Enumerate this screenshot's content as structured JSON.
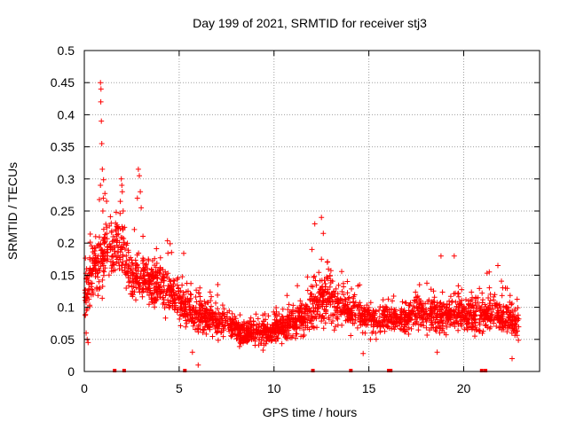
{
  "chart_data": {
    "type": "scatter",
    "title": "Day 199 of 2021, SRMTID for receiver stj3",
    "xlabel": "GPS time / hours",
    "ylabel": "SRMTID / TECUs",
    "xlim": [
      0,
      24
    ],
    "ylim": [
      0,
      0.5
    ],
    "x_ticks": [
      "0",
      "5",
      "10",
      "15",
      "20"
    ],
    "x_tick_values": [
      0,
      5,
      10,
      15,
      20
    ],
    "y_ticks": [
      "0",
      "0.05",
      "0.1",
      "0.15",
      "0.2",
      "0.25",
      "0.3",
      "0.35",
      "0.4",
      "0.45",
      "0.5"
    ],
    "y_tick_values": [
      0,
      0.05,
      0.1,
      0.15,
      0.2,
      0.25,
      0.3,
      0.35,
      0.4,
      0.45,
      0.5
    ],
    "grid": true,
    "marker": "plus",
    "color": "#ff0000",
    "profile_x": [
      0,
      0.5,
      1,
      1.5,
      2,
      2.5,
      3,
      3.5,
      4,
      4.5,
      5,
      5.5,
      6,
      6.5,
      7,
      7.5,
      8,
      8.5,
      9,
      9.5,
      10,
      10.5,
      11,
      11.5,
      12,
      12.5,
      13,
      13.5,
      14,
      14.5,
      15,
      15.5,
      16,
      16.5,
      17,
      17.5,
      18,
      18.5,
      19,
      19.5,
      20,
      20.5,
      21,
      21.5,
      22,
      22.5,
      22.9
    ],
    "profile_y": [
      0.11,
      0.16,
      0.18,
      0.2,
      0.19,
      0.14,
      0.15,
      0.14,
      0.14,
      0.12,
      0.11,
      0.1,
      0.09,
      0.085,
      0.08,
      0.075,
      0.065,
      0.06,
      0.06,
      0.06,
      0.065,
      0.07,
      0.075,
      0.085,
      0.1,
      0.11,
      0.11,
      0.1,
      0.095,
      0.09,
      0.085,
      0.08,
      0.08,
      0.08,
      0.085,
      0.09,
      0.09,
      0.085,
      0.085,
      0.09,
      0.09,
      0.085,
      0.085,
      0.09,
      0.085,
      0.08,
      0.07
    ],
    "spread": [
      0.03,
      0.05,
      0.06,
      0.05,
      0.05,
      0.04,
      0.04,
      0.04,
      0.04,
      0.04,
      0.035,
      0.035,
      0.035,
      0.03,
      0.03,
      0.025,
      0.02,
      0.02,
      0.02,
      0.02,
      0.02,
      0.025,
      0.025,
      0.03,
      0.04,
      0.04,
      0.04,
      0.035,
      0.03,
      0.03,
      0.03,
      0.025,
      0.025,
      0.025,
      0.03,
      0.03,
      0.03,
      0.03,
      0.03,
      0.03,
      0.03,
      0.03,
      0.03,
      0.03,
      0.03,
      0.025,
      0.02
    ],
    "highlight_points": [
      {
        "x": 0.85,
        "y": 0.45
      },
      {
        "x": 0.88,
        "y": 0.44
      },
      {
        "x": 0.87,
        "y": 0.42
      },
      {
        "x": 0.9,
        "y": 0.39
      },
      {
        "x": 0.92,
        "y": 0.355
      },
      {
        "x": 0.95,
        "y": 0.315
      },
      {
        "x": 0.85,
        "y": 0.29
      },
      {
        "x": 1.0,
        "y": 0.27
      },
      {
        "x": 0.98,
        "y": 0.25
      },
      {
        "x": 1.95,
        "y": 0.3
      },
      {
        "x": 1.98,
        "y": 0.29
      },
      {
        "x": 2.0,
        "y": 0.28
      },
      {
        "x": 1.9,
        "y": 0.265
      },
      {
        "x": 2.05,
        "y": 0.25
      },
      {
        "x": 2.85,
        "y": 0.315
      },
      {
        "x": 2.9,
        "y": 0.305
      },
      {
        "x": 2.95,
        "y": 0.28
      },
      {
        "x": 2.8,
        "y": 0.27
      },
      {
        "x": 3.0,
        "y": 0.255
      },
      {
        "x": 0.1,
        "y": 0.06
      },
      {
        "x": 0.15,
        "y": 0.05
      },
      {
        "x": 0.2,
        "y": 0.045
      },
      {
        "x": 12.15,
        "y": 0.23
      },
      {
        "x": 12.5,
        "y": 0.24
      },
      {
        "x": 12.0,
        "y": 0.19
      },
      {
        "x": 12.6,
        "y": 0.215
      },
      {
        "x": 18.8,
        "y": 0.18
      },
      {
        "x": 19.5,
        "y": 0.18
      },
      {
        "x": 21.8,
        "y": 0.165
      },
      {
        "x": 22.2,
        "y": 0.13
      },
      {
        "x": 22.55,
        "y": 0.02
      },
      {
        "x": 6.0,
        "y": 0.01
      },
      {
        "x": 5.7,
        "y": 0.03
      },
      {
        "x": 14.7,
        "y": 0.028
      },
      {
        "x": 18.6,
        "y": 0.03
      }
    ],
    "gap_markers_x": [
      1.6,
      2.1,
      5.3,
      12.05,
      14.05,
      16.05,
      16.15,
      20.95,
      21.15
    ]
  }
}
